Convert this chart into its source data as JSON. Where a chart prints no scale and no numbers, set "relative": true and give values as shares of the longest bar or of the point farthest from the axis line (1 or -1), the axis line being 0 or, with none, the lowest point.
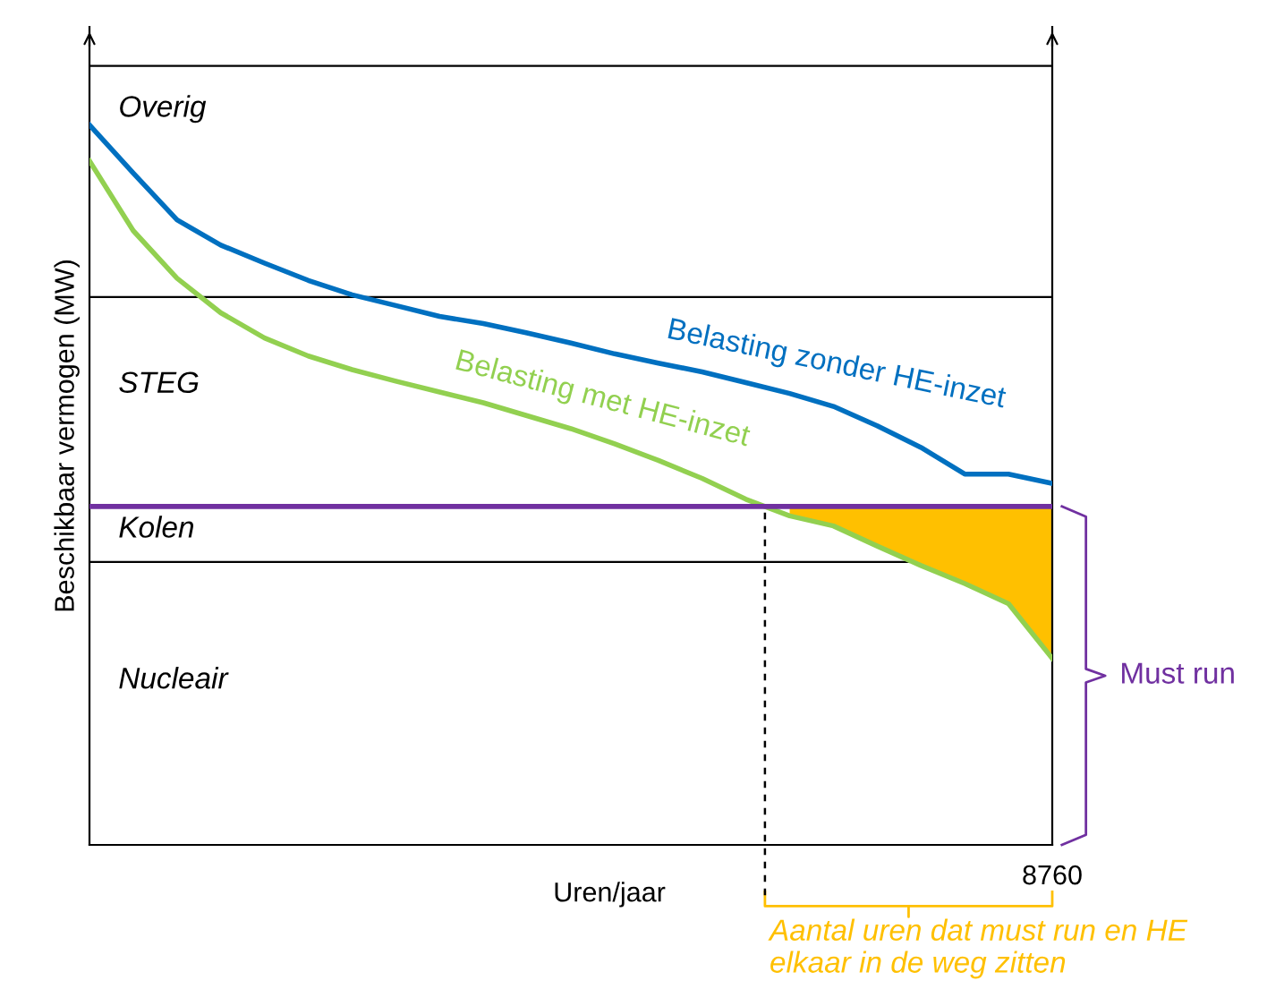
{
  "chart_data": {
    "type": "line",
    "relative": true,
    "xlabel": "Uren/jaar",
    "ylabel": "Beschikbaar vermogen (MW)",
    "marker": "none",
    "line_style": "solid",
    "categories": [
      null,
      null,
      null,
      null,
      null,
      null,
      null,
      null,
      null,
      null,
      null,
      null,
      null,
      null,
      null,
      null,
      null,
      null,
      null,
      null,
      null,
      null,
      null
    ],
    "series": [
      {
        "name": "Belasting zonder HE-inzet",
        "color": "#0070c0",
        "values": [
          1.0,
          0.933,
          0.868,
          0.833,
          0.808,
          0.784,
          0.764,
          0.749,
          0.734,
          0.724,
          0.711,
          0.697,
          0.682,
          0.669,
          0.657,
          0.642,
          0.627,
          0.609,
          0.582,
          0.552,
          0.515,
          0.515,
          0.502
        ]
      },
      {
        "name": "Belasting met HE-inzet",
        "color": "#92d050",
        "values": [
          0.95,
          0.853,
          0.787,
          0.739,
          0.704,
          0.679,
          0.66,
          0.644,
          0.629,
          0.614,
          0.596,
          0.578,
          0.557,
          0.534,
          0.509,
          0.48,
          0.457,
          0.443,
          0.415,
          0.388,
          0.363,
          0.335,
          0.259
        ],
        "lower": [
          null,
          null,
          null,
          null,
          null,
          null,
          null,
          null,
          null,
          null,
          null,
          null,
          null,
          null,
          null,
          null,
          0.457,
          0.443,
          0.415,
          0.388,
          0.363,
          0.335,
          0.259
        ],
        "upper": [
          null,
          null,
          null,
          null,
          null,
          null,
          null,
          null,
          null,
          null,
          null,
          null,
          null,
          null,
          null,
          null,
          0.47,
          0.47,
          0.47,
          0.47,
          0.47,
          0.47,
          0.47
        ]
      }
    ],
    "ref_lines": [
      {
        "axis": "y",
        "value": 0.393,
        "color": "#000000",
        "line_style": "solid"
      },
      {
        "axis": "y",
        "value": 0.761,
        "color": "#000000",
        "line_style": "solid"
      },
      {
        "axis": "y",
        "value": 1.082,
        "color": "#000000",
        "line_style": "solid"
      },
      {
        "axis": "y",
        "value": 0.47,
        "label": "Must run",
        "color": "#7030a0",
        "line_style": "solid"
      }
    ],
    "annotations": [
      "Aantal uren dat must run en HE elkaar in de weg zitten",
      "8760",
      "Nucleair",
      "Kolen",
      "STEG",
      "Overig"
    ]
  }
}
